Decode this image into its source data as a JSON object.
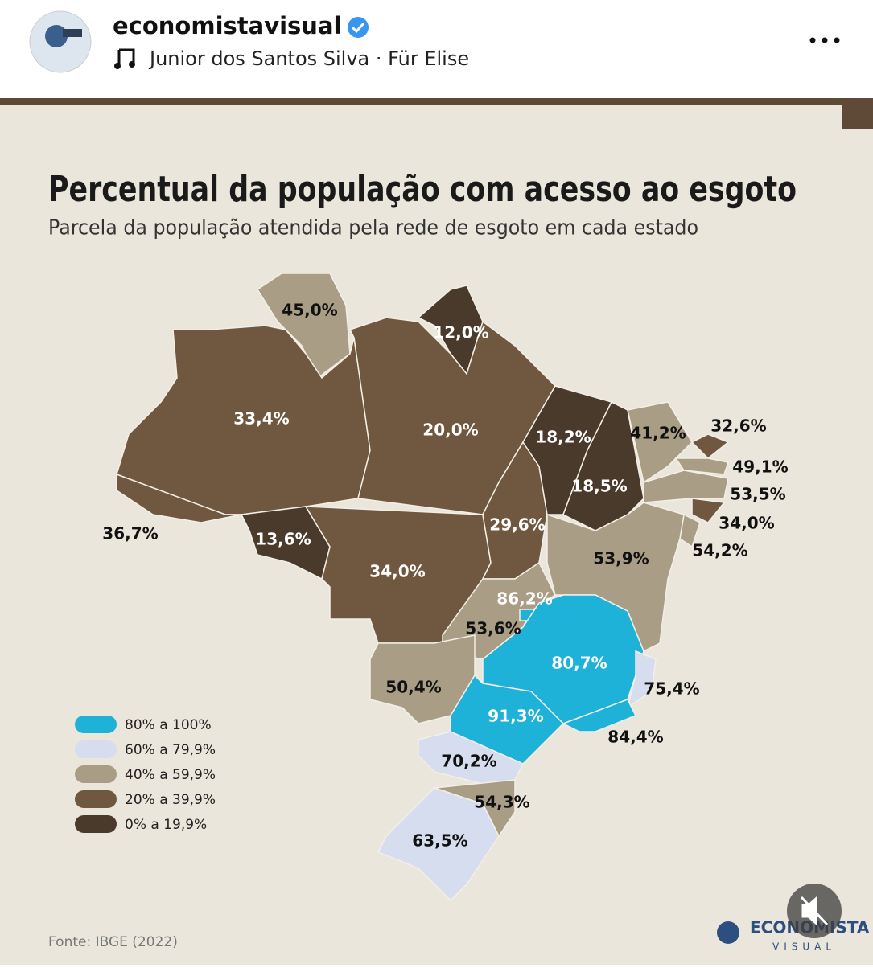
{
  "header": {
    "username": "economistavisual",
    "music": "Junior dos Santos Silva · Für Elise"
  },
  "map": {
    "title": "Percentual da população com acesso ao esgoto",
    "subtitle": "Parcela da população atendida pela rede de esgoto em cada estado",
    "regions": [
      {
        "label": "45,0%",
        "color": "#a99d85"
      },
      {
        "label": "12,0%",
        "color": "#4a3a2c"
      },
      {
        "label": "33,4%",
        "color": "#6f583f"
      },
      {
        "label": "20,0%",
        "color": "#6f583f"
      },
      {
        "label": "36,7%",
        "color": "#6f583f"
      },
      {
        "label": "13,6%",
        "color": "#4a3a2c"
      },
      {
        "label": "34,0%",
        "color": "#6f583f"
      },
      {
        "label": "29,6%",
        "color": "#6f583f"
      },
      {
        "label": "18,2%",
        "color": "#4a3a2c"
      },
      {
        "label": "18,5%",
        "color": "#4a3a2c"
      },
      {
        "label": "41,2%",
        "color": "#a99d85"
      },
      {
        "label": "32,6%",
        "color": "#6f583f"
      },
      {
        "label": "49,1%",
        "color": "#a99d85"
      },
      {
        "label": "53,5%",
        "color": "#a99d85"
      },
      {
        "label": "34,0%",
        "color": "#6f583f"
      },
      {
        "label": "54,2%",
        "color": "#a99d85"
      },
      {
        "label": "53,9%",
        "color": "#a99d85"
      },
      {
        "label": "53,6%",
        "color": "#a99d85"
      },
      {
        "label": "86,2%",
        "color": "#1fb2d9"
      },
      {
        "label": "80,7%",
        "color": "#1fb2d9"
      },
      {
        "label": "75,4%",
        "color": "#d5ddee"
      },
      {
        "label": "50,4%",
        "color": "#a99d85"
      },
      {
        "label": "91,3%",
        "color": "#1fb2d9"
      },
      {
        "label": "84,4%",
        "color": "#1fb2d9"
      },
      {
        "label": "70,2%",
        "color": "#d5ddee"
      },
      {
        "label": "54,3%",
        "color": "#a99d85"
      },
      {
        "label": "63,5%",
        "color": "#d5ddee"
      }
    ],
    "legend": [
      {
        "label": "80% a 100%",
        "color": "#1fb2d9"
      },
      {
        "label": "60% a 79,9%",
        "color": "#d5ddee"
      },
      {
        "label": "40% a 59,9%",
        "color": "#a99d85"
      },
      {
        "label": "20% a 39,9%",
        "color": "#6f583f"
      },
      {
        "label": "0% a 19,9%",
        "color": "#4a3a2c"
      }
    ],
    "source": "Fonte: IBGE (2022)",
    "logo": {
      "name": "ECONOMISTA",
      "tagline": "VISUAL"
    }
  }
}
